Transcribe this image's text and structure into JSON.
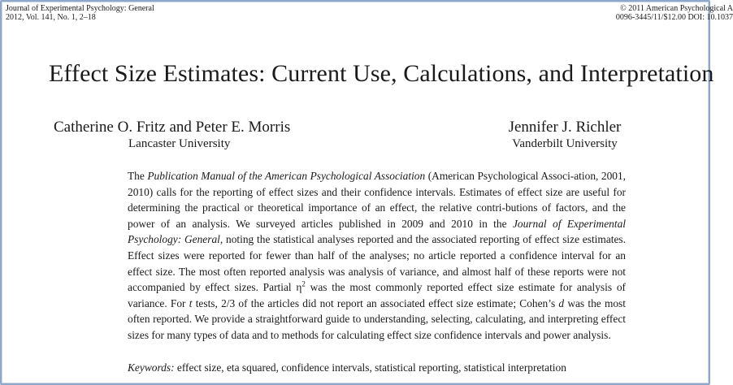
{
  "header": {
    "journal_line1": "Journal of Experimental Psychology: General",
    "journal_line2": "2012, Vol. 141, No. 1, 2–18",
    "copyright_line1": "© 2011 American Psychological A",
    "copyright_line2": "0096-3445/11/$12.00 DOI: 10.1037"
  },
  "title": "Effect Size Estimates: Current Use, Calculations, and Interpretation",
  "authors": [
    {
      "name": "Catherine O. Fritz and Peter E. Morris",
      "affiliation": "Lancaster University"
    },
    {
      "name": "Jennifer J. Richler",
      "affiliation": "Vanderbilt University"
    }
  ],
  "abstract": {
    "s1": "The ",
    "s2": "Publication Manual of the American Psychological Association",
    "s3": " (American Psychological Associ-ation, 2001, 2010) calls for the reporting of effect sizes and their confidence intervals. Estimates of effect size are useful for determining the practical or theoretical importance of an effect, the relative contri-butions of factors, and the power of an analysis. We surveyed articles published in 2009 and 2010 in the ",
    "s4": "Journal of Experimental Psychology: General",
    "s5": ", noting the statistical analyses reported and the associated reporting of effect size estimates. Effect sizes were reported for fewer than half of the analyses; no article reported a confidence interval for an effect size. The most often reported analysis was analysis of variance, and almost half of these reports were not accompanied by effect sizes. Partial η",
    "s5_sup": "2",
    "s6": " was the most commonly reported effect size estimate for analysis of variance. For ",
    "s7": "t",
    "s8": " tests, 2/3 of the articles did not report an associated effect size estimate; Cohen’s ",
    "s9": "d",
    "s10": " was the most often reported. We provide a straightforward guide to understanding, selecting, calculating, and interpreting effect sizes for many types of data and to methods for calculating effect size confidence intervals and power analysis."
  },
  "keywords": {
    "label": "Keywords:",
    "text": " effect size, eta squared, confidence intervals, statistical reporting, statistical interpretation"
  }
}
